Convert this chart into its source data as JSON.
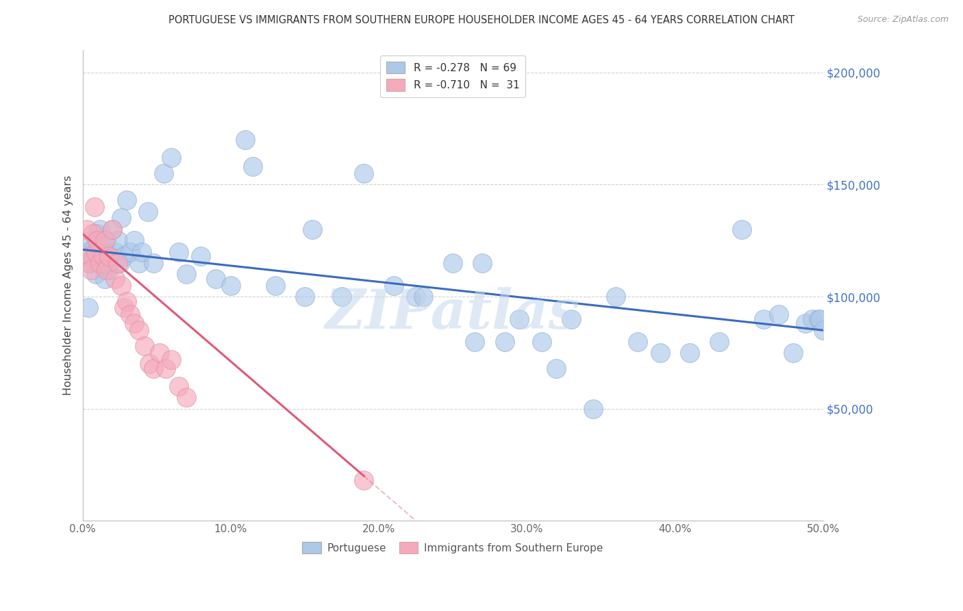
{
  "title": "PORTUGUESE VS IMMIGRANTS FROM SOUTHERN EUROPE HOUSEHOLDER INCOME AGES 45 - 64 YEARS CORRELATION CHART",
  "source": "Source: ZipAtlas.com",
  "ylabel": "Householder Income Ages 45 - 64 years",
  "xlim": [
    0.0,
    0.5
  ],
  "ylim": [
    0,
    210000
  ],
  "xtick_labels": [
    "0.0%",
    "10.0%",
    "20.0%",
    "30.0%",
    "40.0%",
    "50.0%"
  ],
  "xtick_vals": [
    0.0,
    0.1,
    0.2,
    0.3,
    0.4,
    0.5
  ],
  "ytick_labels": [
    "$50,000",
    "$100,000",
    "$150,000",
    "$200,000"
  ],
  "ytick_vals": [
    50000,
    100000,
    150000,
    200000
  ],
  "legend1_label": "R = -0.278   N = 69",
  "legend2_label": "R = -0.710   N =  31",
  "blue_color": "#adc8e8",
  "pink_color": "#f5aabb",
  "blue_line_color": "#3a6bbf",
  "pink_line_color": "#e05878",
  "grid_color": "#d0d0d0",
  "right_tick_color": "#4472c4",
  "watermark": "ZIPatlas",
  "blue_scatter_x": [
    0.003,
    0.004,
    0.005,
    0.006,
    0.007,
    0.008,
    0.009,
    0.01,
    0.011,
    0.012,
    0.013,
    0.014,
    0.015,
    0.016,
    0.017,
    0.018,
    0.02,
    0.022,
    0.024,
    0.025,
    0.026,
    0.028,
    0.03,
    0.032,
    0.035,
    0.038,
    0.04,
    0.044,
    0.048,
    0.055,
    0.06,
    0.065,
    0.07,
    0.08,
    0.09,
    0.1,
    0.11,
    0.115,
    0.13,
    0.15,
    0.155,
    0.175,
    0.19,
    0.21,
    0.225,
    0.23,
    0.25,
    0.265,
    0.27,
    0.285,
    0.295,
    0.31,
    0.32,
    0.33,
    0.345,
    0.36,
    0.375,
    0.39,
    0.41,
    0.43,
    0.445,
    0.46,
    0.47,
    0.48,
    0.488,
    0.493,
    0.497,
    0.498,
    0.5
  ],
  "blue_scatter_y": [
    120000,
    95000,
    115000,
    125000,
    118000,
    122000,
    110000,
    128000,
    115000,
    130000,
    120000,
    115000,
    108000,
    125000,
    118000,
    112000,
    130000,
    120000,
    125000,
    115000,
    135000,
    118000,
    143000,
    120000,
    125000,
    115000,
    120000,
    138000,
    115000,
    155000,
    162000,
    120000,
    110000,
    118000,
    108000,
    105000,
    170000,
    158000,
    105000,
    100000,
    130000,
    100000,
    155000,
    105000,
    100000,
    100000,
    115000,
    80000,
    115000,
    80000,
    90000,
    80000,
    68000,
    90000,
    50000,
    100000,
    80000,
    75000,
    75000,
    80000,
    130000,
    90000,
    92000,
    75000,
    88000,
    90000,
    90000,
    90000,
    85000
  ],
  "pink_scatter_x": [
    0.003,
    0.004,
    0.005,
    0.006,
    0.007,
    0.008,
    0.009,
    0.01,
    0.012,
    0.014,
    0.015,
    0.016,
    0.018,
    0.02,
    0.022,
    0.024,
    0.026,
    0.028,
    0.03,
    0.032,
    0.035,
    0.038,
    0.042,
    0.045,
    0.048,
    0.052,
    0.056,
    0.06,
    0.065,
    0.07,
    0.19
  ],
  "pink_scatter_y": [
    130000,
    115000,
    118000,
    112000,
    128000,
    140000,
    120000,
    125000,
    115000,
    118000,
    125000,
    112000,
    118000,
    130000,
    108000,
    115000,
    105000,
    95000,
    98000,
    92000,
    88000,
    85000,
    78000,
    70000,
    68000,
    75000,
    68000,
    72000,
    60000,
    55000,
    18000
  ],
  "blue_line_x0": 0.0,
  "blue_line_y0": 121000,
  "blue_line_x1": 0.5,
  "blue_line_y1": 85000,
  "pink_line_x0": 0.0,
  "pink_line_y0": 128000,
  "pink_line_x1": 0.19,
  "pink_line_y1": 20000
}
